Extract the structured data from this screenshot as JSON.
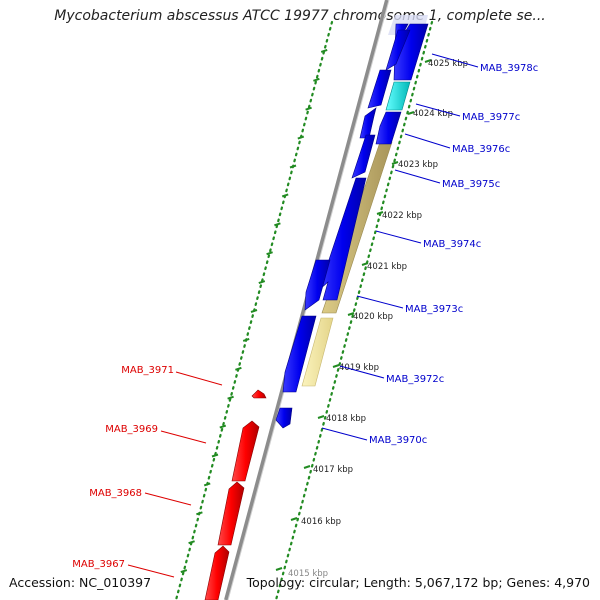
{
  "title": "Mycobacterium abscessus ATCC 19977 chromosome 1, complete se...",
  "accession": "Accession: NC_010397",
  "summary": "Topology: circular; Length: 5,067,172 bp; Genes: 4,970",
  "colors": {
    "reverse_strand": "#ff0000",
    "forward_strand": "#0000ee",
    "forward_highlight": "#00e5e5",
    "operon": "#c8b46e",
    "operon_light": "#f0e6a0",
    "ruler_dots": "#228b22",
    "backbone": "#8c8c8c"
  },
  "kbp_ticks": [
    {
      "label": "4025 kbp"
    },
    {
      "label": "4024 kbp"
    },
    {
      "label": "4023 kbp"
    },
    {
      "label": "4022 kbp"
    },
    {
      "label": "4021 kbp"
    },
    {
      "label": "4020 kbp"
    },
    {
      "label": "4019 kbp"
    },
    {
      "label": "4018 kbp"
    },
    {
      "label": "4017 kbp"
    },
    {
      "label": "4016 kbp"
    },
    {
      "label": "4015 kbp"
    }
  ],
  "forward_genes": [
    {
      "name": "MAB_3978c"
    },
    {
      "name": "MAB_3977c"
    },
    {
      "name": "MAB_3976c"
    },
    {
      "name": "MAB_3975c"
    },
    {
      "name": "MAB_3974c"
    },
    {
      "name": "MAB_3973c"
    },
    {
      "name": "MAB_3972c"
    },
    {
      "name": "MAB_3970c"
    }
  ],
  "reverse_genes": [
    {
      "name": "MAB_3971"
    },
    {
      "name": "MAB_3969"
    },
    {
      "name": "MAB_3968"
    },
    {
      "name": "MAB_3967"
    }
  ]
}
